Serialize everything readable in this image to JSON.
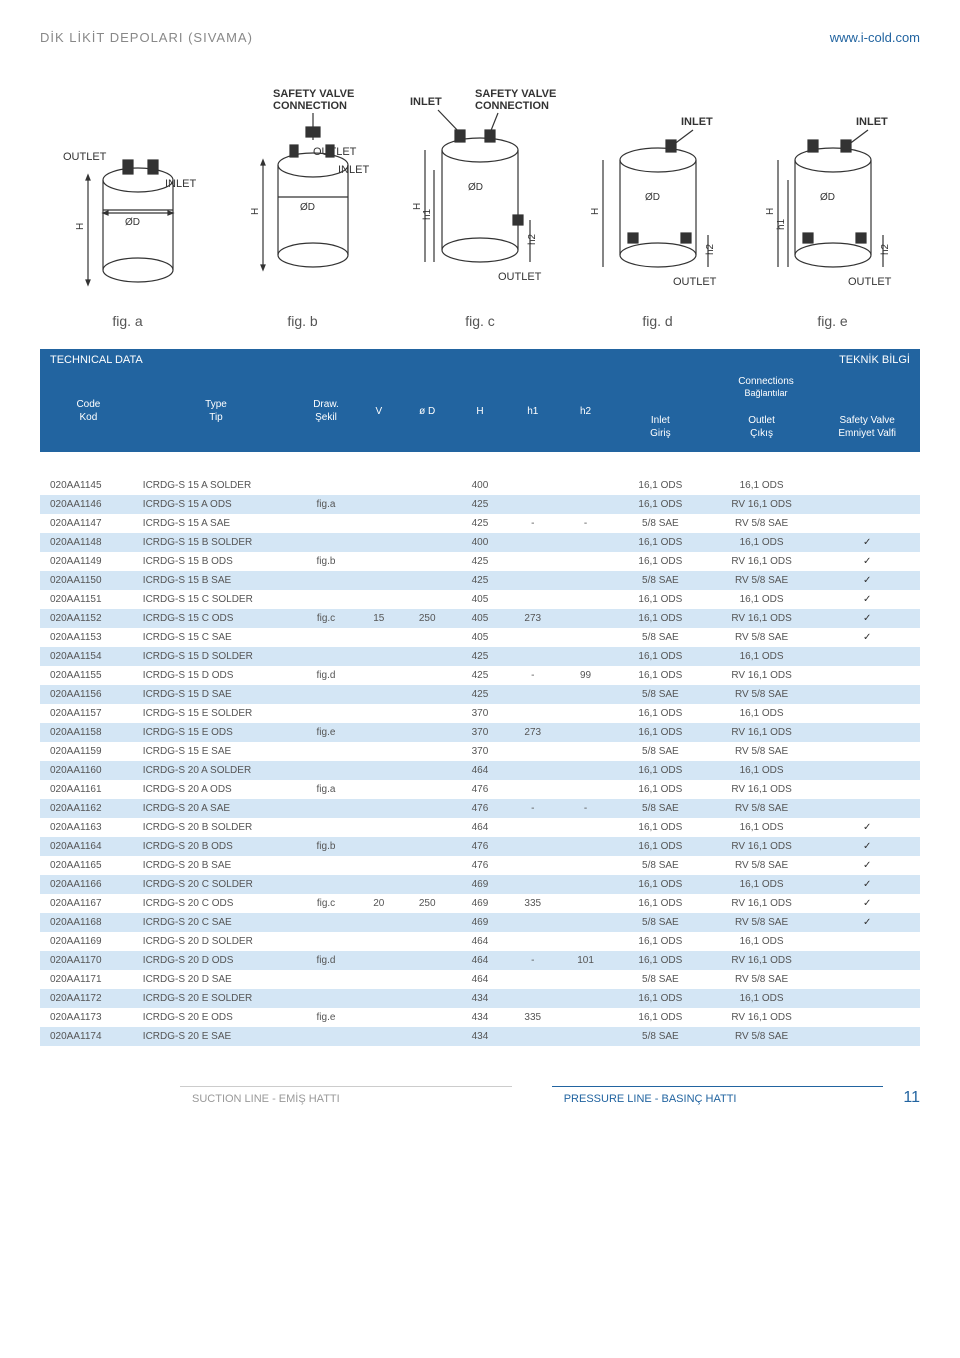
{
  "header": {
    "title": "DİK LİKİT DEPOLARI (SIVAMA)",
    "url": "www.i-cold.com"
  },
  "figures": {
    "labels": {
      "outlet": "OUTLET",
      "inlet": "INLET",
      "safety_valve": "SAFETY VALVE CONNECTION",
      "diameter": "ØD",
      "H": "H",
      "h1": "h1",
      "h2": "h2"
    },
    "fig_a": "fig. a",
    "fig_b": "fig. b",
    "fig_c": "fig. c",
    "fig_d": "fig. d",
    "fig_e": "fig. e"
  },
  "table": {
    "band_left": "TECHNICAL DATA",
    "band_right": "TEKNİK BİLGİ",
    "connections": "Connections",
    "connections_sub": "Bağlantılar",
    "columns": {
      "code": "Code\nKod",
      "type": "Type\nTip",
      "draw": "Draw.\nŞekil",
      "V": "V",
      "oD": "ø D",
      "H": "H",
      "h1": "h1",
      "h2": "h2",
      "inlet": "Inlet\nGiriş",
      "outlet": "Outlet\nÇıkış",
      "safety": "Safety Valve\nEmniyet Valfi"
    },
    "rows": [
      {
        "code": "020AA1145",
        "type": "ICRDG-S 15 A SOLDER",
        "draw": "",
        "V": "",
        "oD": "",
        "H": "400",
        "h1": "",
        "h2": "",
        "inlet": "16,1 ODS",
        "outlet": "16,1 ODS",
        "sv": ""
      },
      {
        "code": "020AA1146",
        "type": "ICRDG-S 15 A ODS",
        "draw": "fig.a",
        "V": "",
        "oD": "",
        "H": "425",
        "h1": "",
        "h2": "",
        "inlet": "16,1 ODS",
        "outlet": "RV 16,1 ODS",
        "sv": ""
      },
      {
        "code": "020AA1147",
        "type": "ICRDG-S 15 A SAE",
        "draw": "",
        "V": "",
        "oD": "",
        "H": "425",
        "h1": "-",
        "h2": "-",
        "inlet": "5/8 SAE",
        "outlet": "RV 5/8 SAE",
        "sv": ""
      },
      {
        "code": "020AA1148",
        "type": "ICRDG-S 15 B SOLDER",
        "draw": "",
        "V": "",
        "oD": "",
        "H": "400",
        "h1": "",
        "h2": "",
        "inlet": "16,1 ODS",
        "outlet": "16,1 ODS",
        "sv": "✓"
      },
      {
        "code": "020AA1149",
        "type": "ICRDG-S 15 B ODS",
        "draw": "fig.b",
        "V": "",
        "oD": "",
        "H": "425",
        "h1": "",
        "h2": "",
        "inlet": "16,1 ODS",
        "outlet": "RV 16,1 ODS",
        "sv": "✓"
      },
      {
        "code": "020AA1150",
        "type": "ICRDG-S 15 B SAE",
        "draw": "",
        "V": "",
        "oD": "",
        "H": "425",
        "h1": "",
        "h2": "",
        "inlet": "5/8 SAE",
        "outlet": "RV 5/8 SAE",
        "sv": "✓"
      },
      {
        "code": "020AA1151",
        "type": "ICRDG-S 15 C SOLDER",
        "draw": "",
        "V": "",
        "oD": "",
        "H": "405",
        "h1": "",
        "h2": "",
        "inlet": "16,1 ODS",
        "outlet": "16,1 ODS",
        "sv": "✓"
      },
      {
        "code": "020AA1152",
        "type": "ICRDG-S 15 C ODS",
        "draw": "fig.c",
        "V": "15",
        "oD": "250",
        "H": "405",
        "h1": "273",
        "h2": "",
        "inlet": "16,1 ODS",
        "outlet": "RV 16,1 ODS",
        "sv": "✓"
      },
      {
        "code": "020AA1153",
        "type": "ICRDG-S 15 C SAE",
        "draw": "",
        "V": "",
        "oD": "",
        "H": "405",
        "h1": "",
        "h2": "",
        "inlet": "5/8 SAE",
        "outlet": "RV 5/8 SAE",
        "sv": "✓"
      },
      {
        "code": "020AA1154",
        "type": "ICRDG-S 15 D SOLDER",
        "draw": "",
        "V": "",
        "oD": "",
        "H": "425",
        "h1": "",
        "h2": "",
        "inlet": "16,1 ODS",
        "outlet": "16,1 ODS",
        "sv": ""
      },
      {
        "code": "020AA1155",
        "type": "ICRDG-S 15 D ODS",
        "draw": "fig.d",
        "V": "",
        "oD": "",
        "H": "425",
        "h1": "-",
        "h2": "99",
        "inlet": "16,1 ODS",
        "outlet": "RV 16,1 ODS",
        "sv": ""
      },
      {
        "code": "020AA1156",
        "type": "ICRDG-S 15 D SAE",
        "draw": "",
        "V": "",
        "oD": "",
        "H": "425",
        "h1": "",
        "h2": "",
        "inlet": "5/8 SAE",
        "outlet": "RV 5/8 SAE",
        "sv": ""
      },
      {
        "code": "020AA1157",
        "type": "ICRDG-S 15 E SOLDER",
        "draw": "",
        "V": "",
        "oD": "",
        "H": "370",
        "h1": "",
        "h2": "",
        "inlet": "16,1 ODS",
        "outlet": "16,1 ODS",
        "sv": ""
      },
      {
        "code": "020AA1158",
        "type": "ICRDG-S 15 E ODS",
        "draw": "fig.e",
        "V": "",
        "oD": "",
        "H": "370",
        "h1": "273",
        "h2": "",
        "inlet": "16,1 ODS",
        "outlet": "RV 16,1 ODS",
        "sv": ""
      },
      {
        "code": "020AA1159",
        "type": "ICRDG-S 15 E SAE",
        "draw": "",
        "V": "",
        "oD": "",
        "H": "370",
        "h1": "",
        "h2": "",
        "inlet": "5/8 SAE",
        "outlet": "RV 5/8 SAE",
        "sv": ""
      },
      {
        "code": "020AA1160",
        "type": "ICRDG-S 20 A SOLDER",
        "draw": "",
        "V": "",
        "oD": "",
        "H": "464",
        "h1": "",
        "h2": "",
        "inlet": "16,1 ODS",
        "outlet": "16,1 ODS",
        "sv": ""
      },
      {
        "code": "020AA1161",
        "type": "ICRDG-S 20 A ODS",
        "draw": "fig.a",
        "V": "",
        "oD": "",
        "H": "476",
        "h1": "",
        "h2": "",
        "inlet": "16,1 ODS",
        "outlet": "RV 16,1 ODS",
        "sv": ""
      },
      {
        "code": "020AA1162",
        "type": "ICRDG-S 20 A SAE",
        "draw": "",
        "V": "",
        "oD": "",
        "H": "476",
        "h1": "-",
        "h2": "-",
        "inlet": "5/8 SAE",
        "outlet": "RV 5/8 SAE",
        "sv": ""
      },
      {
        "code": "020AA1163",
        "type": "ICRDG-S 20 B SOLDER",
        "draw": "",
        "V": "",
        "oD": "",
        "H": "464",
        "h1": "",
        "h2": "",
        "inlet": "16,1 ODS",
        "outlet": "16,1 ODS",
        "sv": "✓"
      },
      {
        "code": "020AA1164",
        "type": "ICRDG-S 20 B ODS",
        "draw": "fig.b",
        "V": "",
        "oD": "",
        "H": "476",
        "h1": "",
        "h2": "",
        "inlet": "16,1 ODS",
        "outlet": "RV 16,1 ODS",
        "sv": "✓"
      },
      {
        "code": "020AA1165",
        "type": "ICRDG-S 20 B SAE",
        "draw": "",
        "V": "",
        "oD": "",
        "H": "476",
        "h1": "",
        "h2": "",
        "inlet": "5/8 SAE",
        "outlet": "RV 5/8 SAE",
        "sv": "✓"
      },
      {
        "code": "020AA1166",
        "type": "ICRDG-S 20 C SOLDER",
        "draw": "",
        "V": "",
        "oD": "",
        "H": "469",
        "h1": "",
        "h2": "",
        "inlet": "16,1 ODS",
        "outlet": "16,1 ODS",
        "sv": "✓"
      },
      {
        "code": "020AA1167",
        "type": "ICRDG-S 20 C ODS",
        "draw": "fig.c",
        "V": "20",
        "oD": "250",
        "H": "469",
        "h1": "335",
        "h2": "",
        "inlet": "16,1 ODS",
        "outlet": "RV 16,1 ODS",
        "sv": "✓"
      },
      {
        "code": "020AA1168",
        "type": "ICRDG-S 20 C SAE",
        "draw": "",
        "V": "",
        "oD": "",
        "H": "469",
        "h1": "",
        "h2": "",
        "inlet": "5/8 SAE",
        "outlet": "RV 5/8 SAE",
        "sv": "✓"
      },
      {
        "code": "020AA1169",
        "type": "ICRDG-S 20 D SOLDER",
        "draw": "",
        "V": "",
        "oD": "",
        "H": "464",
        "h1": "",
        "h2": "",
        "inlet": "16,1 ODS",
        "outlet": "16,1 ODS",
        "sv": ""
      },
      {
        "code": "020AA1170",
        "type": "ICRDG-S 20 D ODS",
        "draw": "fig.d",
        "V": "",
        "oD": "",
        "H": "464",
        "h1": "-",
        "h2": "101",
        "inlet": "16,1 ODS",
        "outlet": "RV 16,1 ODS",
        "sv": ""
      },
      {
        "code": "020AA1171",
        "type": "ICRDG-S 20 D SAE",
        "draw": "",
        "V": "",
        "oD": "",
        "H": "464",
        "h1": "",
        "h2": "",
        "inlet": "5/8 SAE",
        "outlet": "RV 5/8 SAE",
        "sv": ""
      },
      {
        "code": "020AA1172",
        "type": "ICRDG-S 20 E SOLDER",
        "draw": "",
        "V": "",
        "oD": "",
        "H": "434",
        "h1": "",
        "h2": "",
        "inlet": "16,1 ODS",
        "outlet": "16,1 ODS",
        "sv": ""
      },
      {
        "code": "020AA1173",
        "type": "ICRDG-S 20 E ODS",
        "draw": "fig.e",
        "V": "",
        "oD": "",
        "H": "434",
        "h1": "335",
        "h2": "",
        "inlet": "16,1 ODS",
        "outlet": "RV 16,1 ODS",
        "sv": ""
      },
      {
        "code": "020AA1174",
        "type": "ICRDG-S 20 E SAE",
        "draw": "",
        "V": "",
        "oD": "",
        "H": "434",
        "h1": "",
        "h2": "",
        "inlet": "5/8 SAE",
        "outlet": "RV 5/8 SAE",
        "sv": ""
      }
    ]
  },
  "footer": {
    "suction": "SUCTION LINE - EMİŞ HATTI",
    "pressure": "PRESSURE LINE - BASINÇ HATTI",
    "page": "11"
  },
  "style": {
    "primary": "#2264a0",
    "row_even_bg": "#d4e6f5",
    "text_color": "#555555",
    "diagram_stroke": "#333333"
  }
}
